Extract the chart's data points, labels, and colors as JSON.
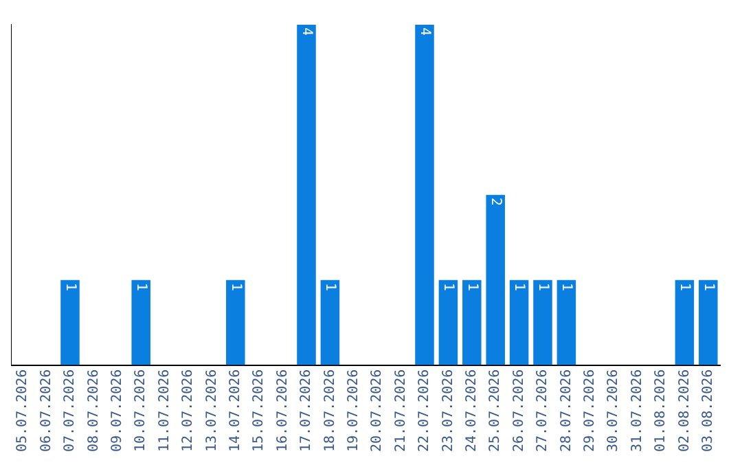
{
  "chart_data": {
    "type": "bar",
    "categories": [
      "05.07.2026",
      "06.07.2026",
      "07.07.2026",
      "08.07.2026",
      "09.07.2026",
      "10.07.2026",
      "11.07.2026",
      "12.07.2026",
      "13.07.2026",
      "14.07.2026",
      "15.07.2026",
      "16.07.2026",
      "17.07.2026",
      "18.07.2026",
      "19.07.2026",
      "20.07.2026",
      "21.07.2026",
      "22.07.2026",
      "23.07.2026",
      "24.07.2026",
      "25.07.2026",
      "26.07.2026",
      "27.07.2026",
      "28.07.2026",
      "29.07.2026",
      "30.07.2026",
      "31.07.2026",
      "01.08.2026",
      "02.08.2026",
      "03.08.2026"
    ],
    "values": [
      0,
      0,
      1,
      0,
      0,
      1,
      0,
      0,
      0,
      1,
      0,
      0,
      4,
      1,
      0,
      0,
      0,
      4,
      1,
      1,
      2,
      1,
      1,
      1,
      0,
      0,
      0,
      0,
      1,
      1
    ],
    "value_labels": [
      null,
      null,
      "1",
      null,
      null,
      "1",
      null,
      null,
      null,
      "1",
      null,
      null,
      "4",
      "1",
      null,
      null,
      null,
      "4",
      "1",
      "1",
      "2",
      "1",
      "1",
      "1",
      null,
      null,
      null,
      null,
      "1",
      "1"
    ],
    "color": "#0a7fe0",
    "grid": false,
    "legend": false
  }
}
